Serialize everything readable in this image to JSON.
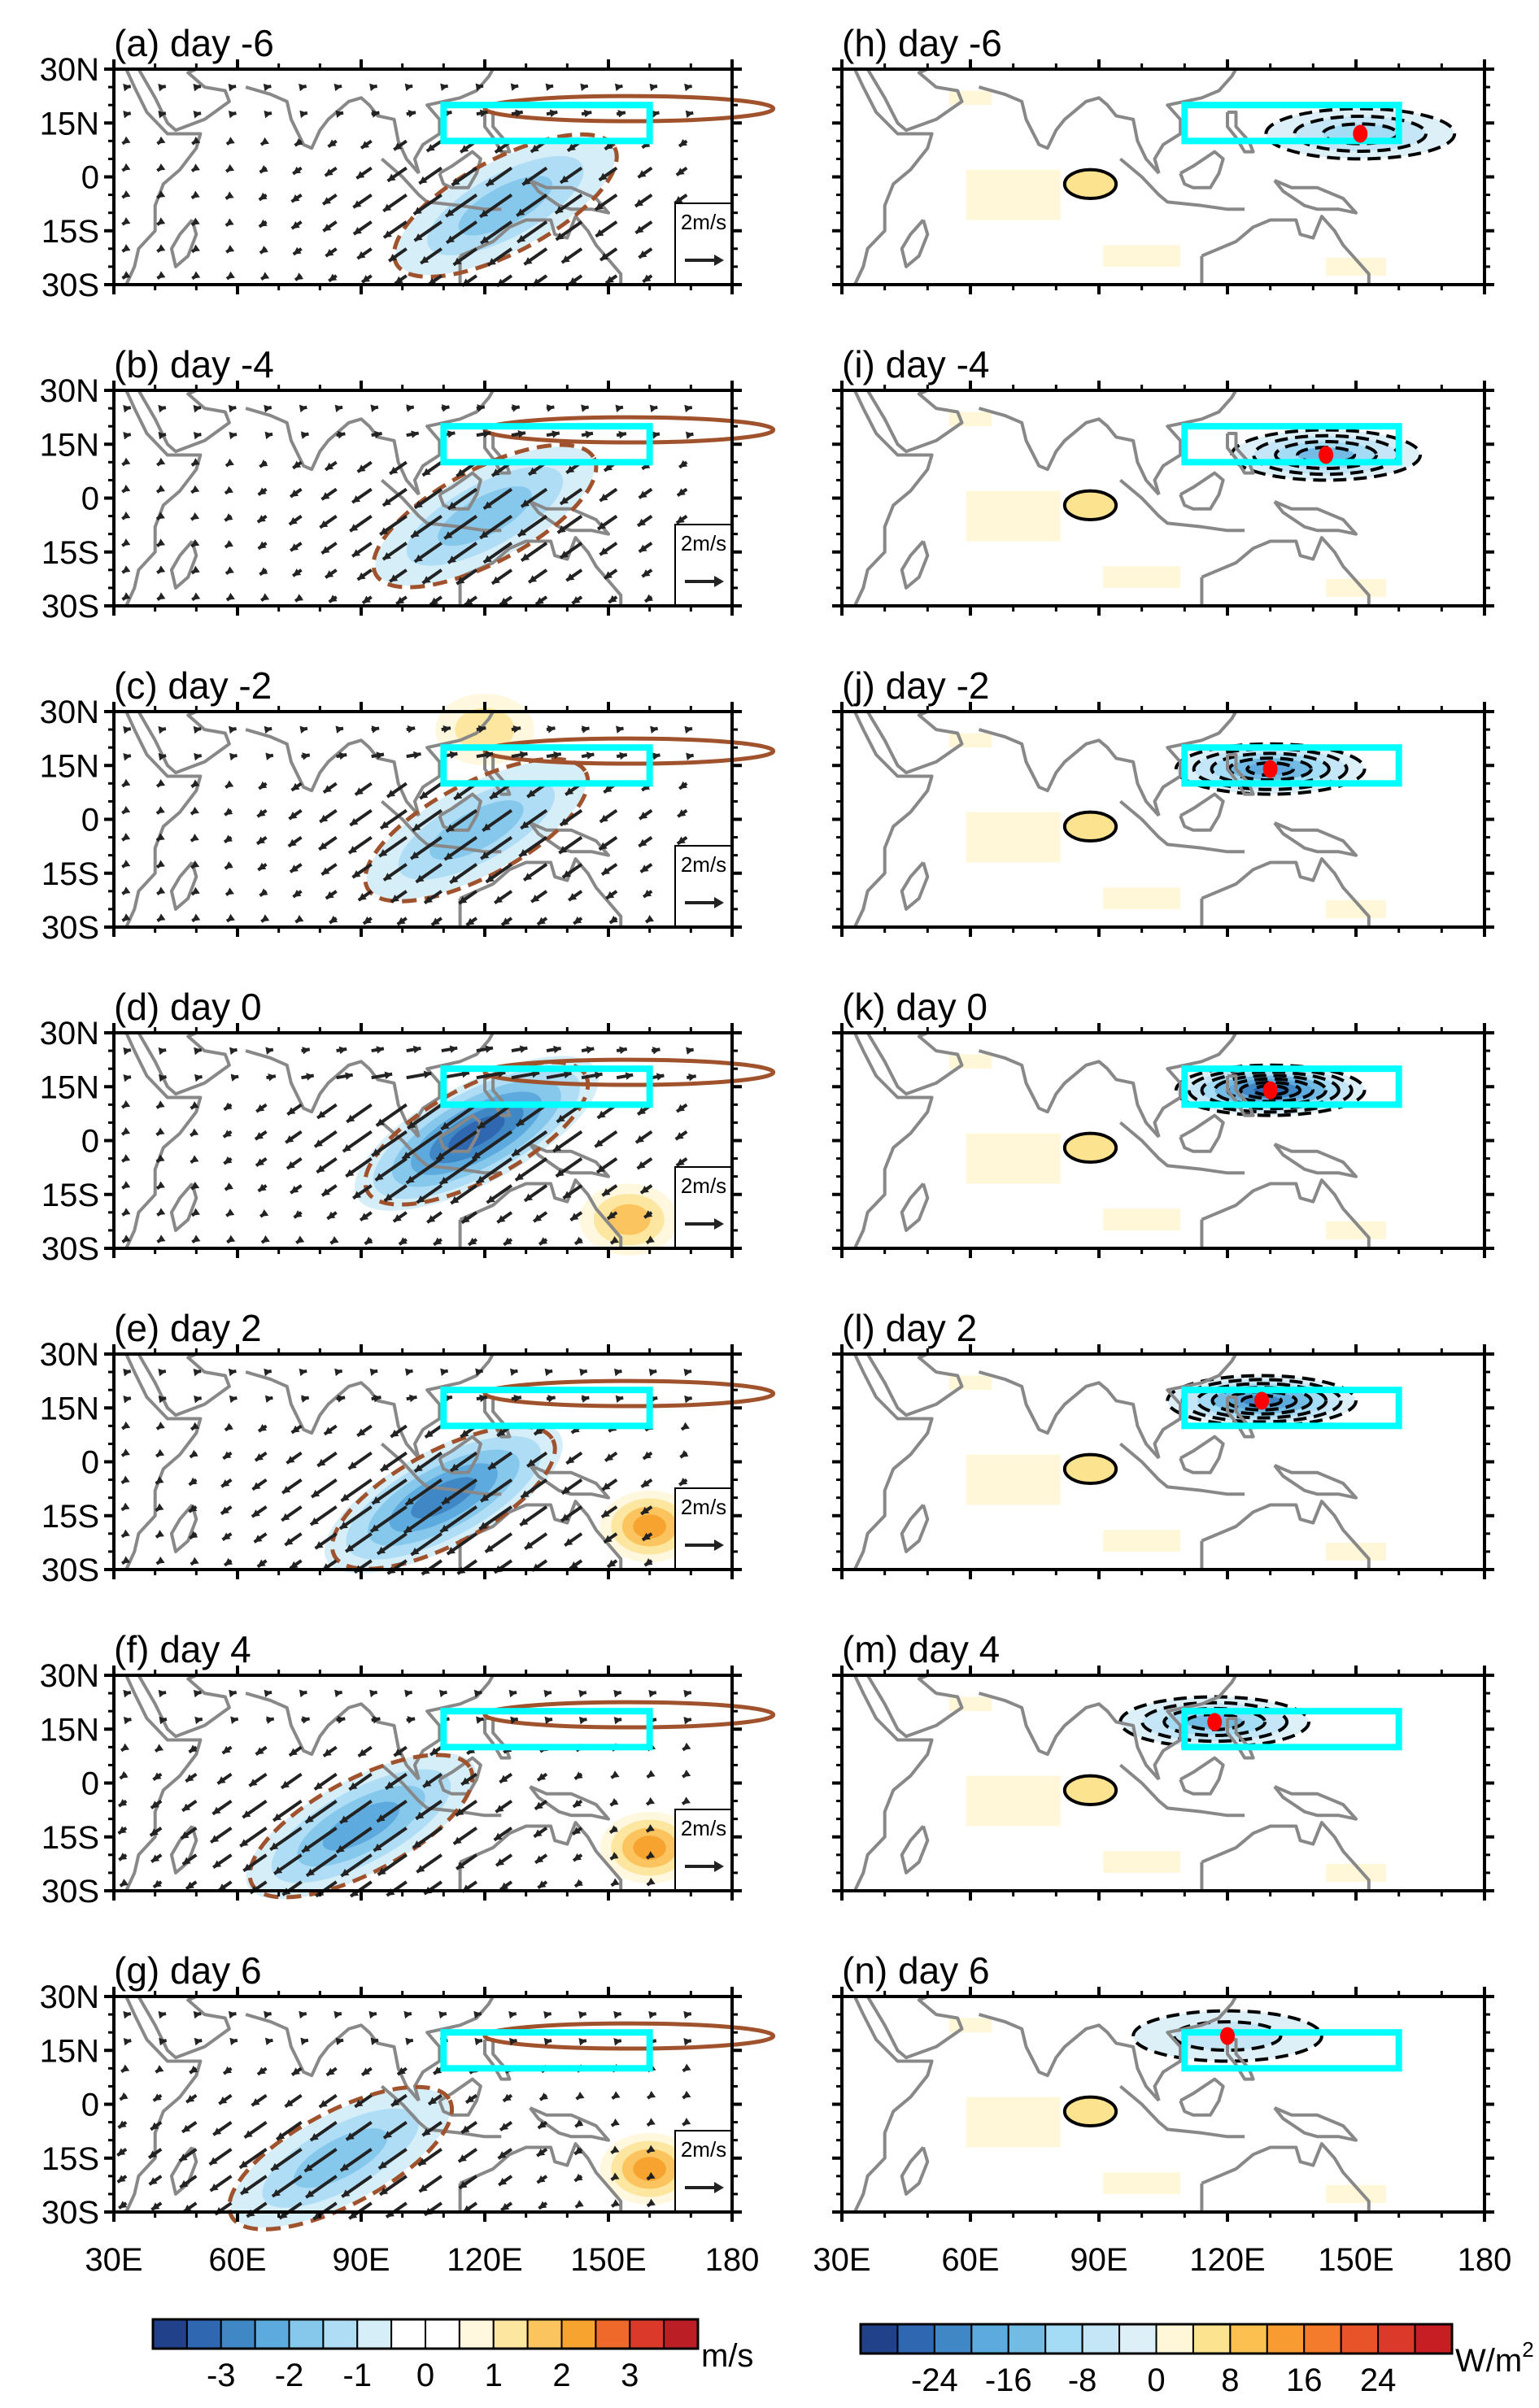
{
  "chart_data": {
    "type": "heatmap",
    "title": "",
    "layout": "7 rows x 2 columns",
    "map_extent": {
      "lon": [
        30,
        180
      ],
      "lat": [
        -30,
        30
      ]
    },
    "x_ticks": [
      "30E",
      "60E",
      "90E",
      "120E",
      "150E",
      "180"
    ],
    "x_tick_values": [
      30,
      60,
      90,
      120,
      150,
      180
    ],
    "y_ticks": [
      "30N",
      "15N",
      "0",
      "15S",
      "30S"
    ],
    "y_tick_values": [
      30,
      15,
      0,
      -15,
      -30
    ],
    "region_box": {
      "lon": [
        110,
        160
      ],
      "lat": [
        10,
        20
      ],
      "color": "#00FFFF"
    },
    "left_column": {
      "variable": "wind anomaly (vectors) with shading",
      "units": "m/s",
      "reference_vector": "2m/s",
      "reference_vector_value": 2,
      "contours": {
        "positive": "solid brown",
        "negative": "dashed brown",
        "color": "#A0522D"
      },
      "panels": [
        {
          "id": "a",
          "title": "(a) day -6",
          "day": -6,
          "min_shading": -2,
          "max_shading": 1,
          "neg_center": {
            "lon": 125,
            "lat": -8
          },
          "pos_center": null
        },
        {
          "id": "b",
          "title": "(b) day -4",
          "day": -4,
          "min_shading": -2,
          "max_shading": 1,
          "neg_center": {
            "lon": 120,
            "lat": -5
          },
          "pos_center": null
        },
        {
          "id": "c",
          "title": "(c) day -2",
          "day": -2,
          "min_shading": -2,
          "max_shading": 1,
          "neg_center": {
            "lon": 118,
            "lat": -3
          },
          "pos_center": {
            "lon": 120,
            "lat": 25
          }
        },
        {
          "id": "d",
          "title": "(d) day 0",
          "day": 0,
          "min_shading": -3.5,
          "max_shading": 1.5,
          "neg_center": {
            "lon": 118,
            "lat": 2
          },
          "pos_center": {
            "lon": 155,
            "lat": -22
          }
        },
        {
          "id": "e",
          "title": "(e) day 2",
          "day": 2,
          "min_shading": -3,
          "max_shading": 2,
          "neg_center": {
            "lon": 110,
            "lat": -10
          },
          "pos_center": {
            "lon": 160,
            "lat": -18
          }
        },
        {
          "id": "f",
          "title": "(f) day 4",
          "day": 4,
          "min_shading": -2.5,
          "max_shading": 2,
          "neg_center": {
            "lon": 90,
            "lat": -12
          },
          "pos_center": {
            "lon": 160,
            "lat": -18
          }
        },
        {
          "id": "g",
          "title": "(g) day 6",
          "day": 6,
          "min_shading": -2,
          "max_shading": 2,
          "neg_center": {
            "lon": 85,
            "lat": -15
          },
          "pos_center": {
            "lon": 160,
            "lat": -18
          }
        }
      ],
      "colorbar": {
        "labels": [
          "-3",
          "-2",
          "-1",
          "0",
          "1",
          "2",
          "3"
        ],
        "label_values": [
          -3,
          -2,
          -1,
          0,
          1,
          2,
          3
        ],
        "unit": "m/s",
        "colors": [
          "#21428A",
          "#2F67B1",
          "#3F88C5",
          "#5DAADE",
          "#86C7EC",
          "#AEDDF5",
          "#D6EEF8",
          "#FFFFFF",
          "#FFFFFF",
          "#FFF7DE",
          "#FCE6A0",
          "#FBC45E",
          "#F7A330",
          "#EF6A2A",
          "#DB3A2A",
          "#BB1E24"
        ]
      }
    },
    "right_column": {
      "variable": "flux anomaly (shading + contours)",
      "units": "W/m2",
      "marker": {
        "type": "dot",
        "color": "#FF0000"
      },
      "contours": {
        "positive": "solid black",
        "negative": "dashed black"
      },
      "panels": [
        {
          "id": "h",
          "title": "(h) day -6",
          "day": -6,
          "dot": {
            "lon": 151,
            "lat": 12
          },
          "min_shading": -10
        },
        {
          "id": "i",
          "title": "(i) day -4",
          "day": -4,
          "dot": {
            "lon": 143,
            "lat": 12
          },
          "min_shading": -14
        },
        {
          "id": "j",
          "title": "(j) day -2",
          "day": -2,
          "dot": {
            "lon": 130,
            "lat": 14
          },
          "min_shading": -20
        },
        {
          "id": "k",
          "title": "(k) day 0",
          "day": 0,
          "dot": {
            "lon": 130,
            "lat": 14
          },
          "min_shading": -26
        },
        {
          "id": "l",
          "title": "(l) day 2",
          "day": 2,
          "dot": {
            "lon": 128,
            "lat": 17
          },
          "min_shading": -22
        },
        {
          "id": "m",
          "title": "(m) day 4",
          "day": 4,
          "dot": {
            "lon": 117,
            "lat": 17
          },
          "min_shading": -14
        },
        {
          "id": "n",
          "title": "(n) day 6",
          "day": 6,
          "dot": {
            "lon": 120,
            "lat": 19
          },
          "min_shading": -8
        }
      ],
      "colorbar": {
        "labels": [
          "-24",
          "-16",
          "-8",
          "0",
          "8",
          "16",
          "24"
        ],
        "label_values": [
          -24,
          -16,
          -8,
          0,
          8,
          16,
          24
        ],
        "unit": "W/m",
        "unit_superscript": "2",
        "colors": [
          "#21428A",
          "#2F67B1",
          "#3F88C5",
          "#5DAADE",
          "#72BBE4",
          "#A5DCF5",
          "#C5E6F6",
          "#DDF0F8",
          "#FFF7D8",
          "#FCE38F",
          "#FBC050",
          "#F89B30",
          "#F47B2B",
          "#E8532A",
          "#DB3A2A",
          "#C71E24"
        ]
      }
    }
  }
}
